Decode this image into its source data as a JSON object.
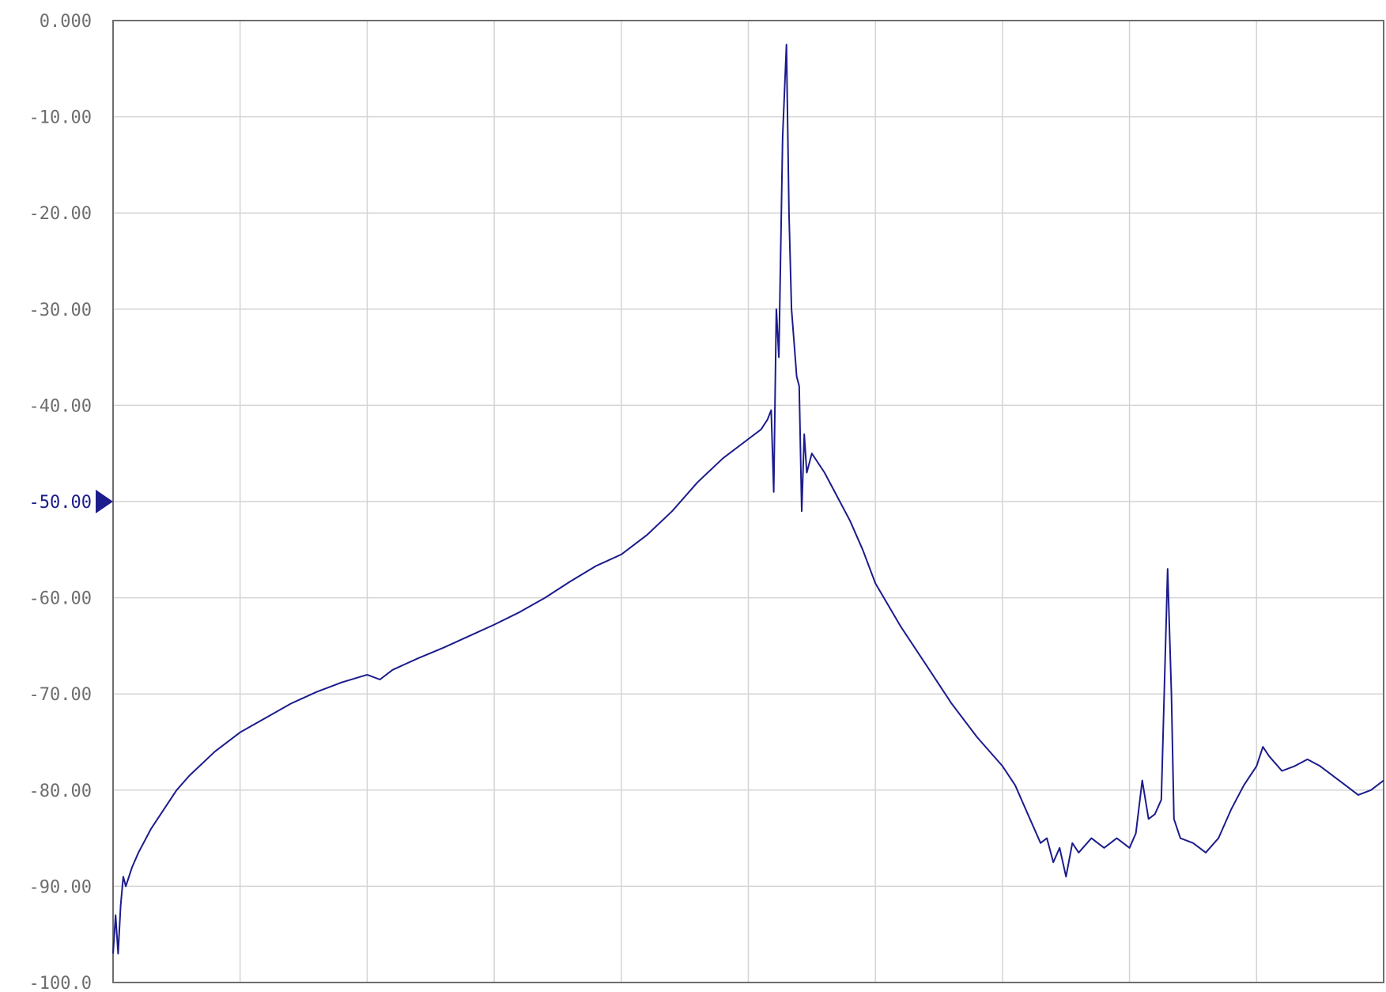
{
  "chart_data": {
    "type": "line",
    "title": "",
    "xlabel": "",
    "ylabel": "",
    "ylim": [
      -100,
      0
    ],
    "xlim": [
      0,
      10
    ],
    "x_grid_divisions": 10,
    "y_tick_labels": [
      "0.000",
      "-10.00",
      "-20.00",
      "-30.00",
      "-40.00",
      "-50.00",
      "-60.00",
      "-70.00",
      "-80.00",
      "-90.00",
      "-100.0"
    ],
    "y_tick_values": [
      0,
      -10,
      -20,
      -30,
      -40,
      -50,
      -60,
      -70,
      -80,
      -90,
      -100
    ],
    "reference_level": -50,
    "reference_label": "-50.00",
    "grid": true,
    "legend": "none",
    "colors": {
      "trace": "#1c1c8c",
      "reference": "#1c1c8c",
      "tick_text": "#6e6e6e",
      "grid": "#d4d4d4"
    },
    "series": [
      {
        "values_xy": [
          [
            0.0,
            -97
          ],
          [
            0.02,
            -93
          ],
          [
            0.04,
            -97
          ],
          [
            0.06,
            -92
          ],
          [
            0.08,
            -89
          ],
          [
            0.1,
            -90
          ],
          [
            0.15,
            -88
          ],
          [
            0.2,
            -86.5
          ],
          [
            0.3,
            -84
          ],
          [
            0.4,
            -82
          ],
          [
            0.5,
            -80
          ],
          [
            0.6,
            -78.5
          ],
          [
            0.8,
            -76
          ],
          [
            1.0,
            -74
          ],
          [
            1.2,
            -72.5
          ],
          [
            1.4,
            -71
          ],
          [
            1.6,
            -69.8
          ],
          [
            1.8,
            -68.8
          ],
          [
            2.0,
            -68
          ],
          [
            2.1,
            -68.5
          ],
          [
            2.2,
            -67.5
          ],
          [
            2.4,
            -66.3
          ],
          [
            2.6,
            -65.2
          ],
          [
            2.8,
            -64
          ],
          [
            3.0,
            -62.8
          ],
          [
            3.2,
            -61.5
          ],
          [
            3.4,
            -60
          ],
          [
            3.6,
            -58.3
          ],
          [
            3.8,
            -56.7
          ],
          [
            4.0,
            -55.5
          ],
          [
            4.2,
            -53.5
          ],
          [
            4.4,
            -51
          ],
          [
            4.6,
            -48
          ],
          [
            4.8,
            -45.5
          ],
          [
            5.0,
            -43.5
          ],
          [
            5.1,
            -42.5
          ],
          [
            5.15,
            -41.5
          ],
          [
            5.18,
            -40.5
          ],
          [
            5.2,
            -49
          ],
          [
            5.22,
            -30
          ],
          [
            5.24,
            -35
          ],
          [
            5.27,
            -12
          ],
          [
            5.3,
            -2.5
          ],
          [
            5.32,
            -20
          ],
          [
            5.34,
            -30
          ],
          [
            5.36,
            -33.5
          ],
          [
            5.38,
            -37
          ],
          [
            5.4,
            -38
          ],
          [
            5.42,
            -51
          ],
          [
            5.44,
            -43
          ],
          [
            5.46,
            -47
          ],
          [
            5.5,
            -45
          ],
          [
            5.6,
            -47
          ],
          [
            5.7,
            -49.5
          ],
          [
            5.8,
            -52
          ],
          [
            5.9,
            -55
          ],
          [
            6.0,
            -58.5
          ],
          [
            6.2,
            -63
          ],
          [
            6.4,
            -67
          ],
          [
            6.6,
            -71
          ],
          [
            6.8,
            -74.5
          ],
          [
            7.0,
            -77.5
          ],
          [
            7.1,
            -79.5
          ],
          [
            7.2,
            -82.5
          ],
          [
            7.3,
            -85.5
          ],
          [
            7.35,
            -85
          ],
          [
            7.4,
            -87.5
          ],
          [
            7.45,
            -86
          ],
          [
            7.5,
            -89
          ],
          [
            7.55,
            -85.5
          ],
          [
            7.6,
            -86.5
          ],
          [
            7.7,
            -85
          ],
          [
            7.8,
            -86
          ],
          [
            7.9,
            -85
          ],
          [
            8.0,
            -86
          ],
          [
            8.05,
            -84.5
          ],
          [
            8.1,
            -79
          ],
          [
            8.15,
            -83
          ],
          [
            8.2,
            -82.5
          ],
          [
            8.25,
            -81
          ],
          [
            8.3,
            -57
          ],
          [
            8.33,
            -70
          ],
          [
            8.35,
            -83
          ],
          [
            8.4,
            -85
          ],
          [
            8.5,
            -85.5
          ],
          [
            8.6,
            -86.5
          ],
          [
            8.7,
            -85
          ],
          [
            8.8,
            -82
          ],
          [
            8.9,
            -79.5
          ],
          [
            9.0,
            -77.5
          ],
          [
            9.05,
            -75.5
          ],
          [
            9.1,
            -76.5
          ],
          [
            9.2,
            -78
          ],
          [
            9.3,
            -77.5
          ],
          [
            9.4,
            -76.8
          ],
          [
            9.5,
            -77.5
          ],
          [
            9.6,
            -78.5
          ],
          [
            9.7,
            -79.5
          ],
          [
            9.8,
            -80.5
          ],
          [
            9.9,
            -80
          ],
          [
            10.0,
            -79
          ]
        ]
      }
    ]
  }
}
